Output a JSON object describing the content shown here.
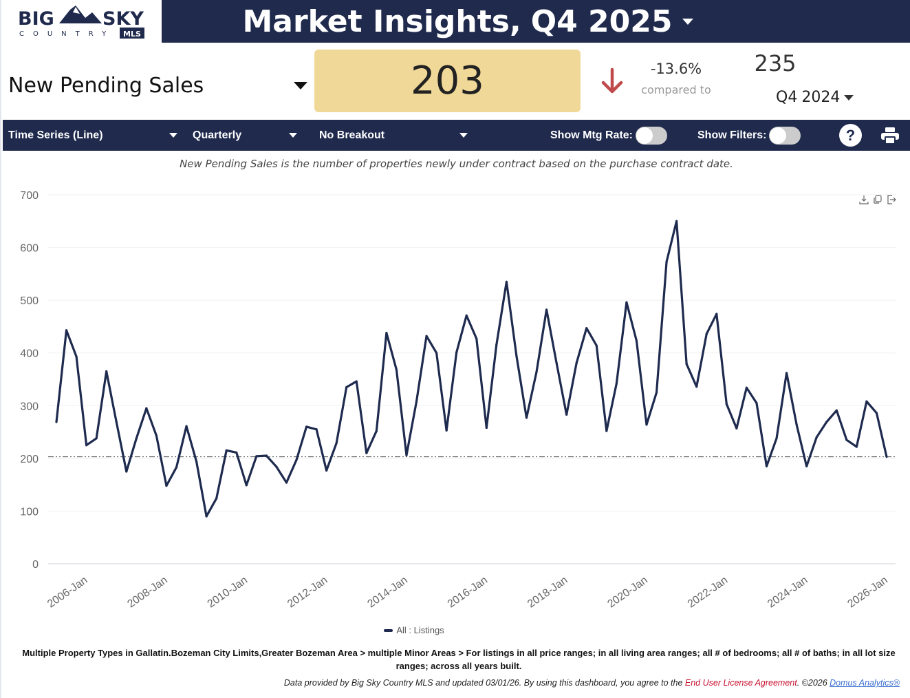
{
  "brand": {
    "logo_text_top": "BIG SKY",
    "logo_text_bottom": "COUNTRY",
    "logo_badge": "MLS"
  },
  "header": {
    "title": "Market Insights,",
    "period": "Q4  2025"
  },
  "metric": {
    "name": "New Pending Sales",
    "value": "203",
    "change_pct": "-13.6%",
    "change_direction": "down",
    "compared_label": "compared to",
    "prev_value": "235",
    "prev_period_q": "Q4",
    "prev_period_year": "2024",
    "value_box_color": "#f0d898",
    "down_color": "#c0494b"
  },
  "toolbar": {
    "chart_type": "Time Series (Line)",
    "interval": "Quarterly",
    "breakout": "No Breakout",
    "mtg_rate_label": "Show Mtg Rate:",
    "mtg_rate_on": false,
    "filters_label": "Show Filters:",
    "filters_on": false,
    "help_icon": "question-circle-icon",
    "print_icon": "printer-icon"
  },
  "description": "New Pending Sales is the number of properties newly under contract based on the purchase contract date.",
  "chart_tools": [
    "download-icon",
    "copy-icon",
    "export-icon"
  ],
  "chart_data": {
    "type": "line",
    "title": "",
    "xlabel": "",
    "ylabel": "",
    "ylim": [
      0,
      700
    ],
    "yticks": [
      0,
      100,
      200,
      300,
      400,
      500,
      600,
      700
    ],
    "xticks": [
      "2006-Jan",
      "2008-Jan",
      "2010-Jan",
      "2012-Jan",
      "2014-Jan",
      "2016-Jan",
      "2018-Jan",
      "2020-Jan",
      "2022-Jan",
      "2024-Jan",
      "2026-Jan"
    ],
    "x_start": "2005-Q1",
    "x_end": "2025-Q4",
    "grid": "horizontal",
    "reference_line": 203,
    "line_color": "#1e2b4f",
    "legend_position": "bottom",
    "series": [
      {
        "name": "All : Listings",
        "values": [
          269,
          443,
          393,
          225,
          238,
          365,
          269,
          175,
          238,
          295,
          243,
          148,
          183,
          261,
          194,
          90,
          124,
          215,
          211,
          149,
          204,
          205,
          184,
          154,
          197,
          260,
          255,
          177,
          229,
          335,
          346,
          210,
          252,
          438,
          368,
          206,
          308,
          432,
          400,
          253,
          401,
          471,
          427,
          258,
          416,
          535,
          394,
          277,
          364,
          482,
          381,
          283,
          381,
          447,
          414,
          252,
          342,
          496,
          423,
          264,
          325,
          573,
          650,
          379,
          336,
          436,
          474,
          303,
          257,
          334,
          305,
          185,
          238,
          362,
          264,
          185,
          240,
          269,
          291,
          235,
          222,
          308,
          286,
          203
        ]
      }
    ]
  },
  "filters_text": "Multiple Property Types in Gallatin.Bozeman City Limits,Greater Bozeman Area > multiple Minor Areas > For listings in all price ranges; in all living area ranges; all # of bedrooms; all # of baths; in all lot size ranges; across all years built.",
  "footer": {
    "text": "Data provided by Big Sky Country MLS and updated 03/01/26.  By using this dashboard, you agree to the ",
    "eula_link": "End User License Agreement",
    "copyright": ".  ©2026 ",
    "domus_link": "Domus Analytics®"
  }
}
